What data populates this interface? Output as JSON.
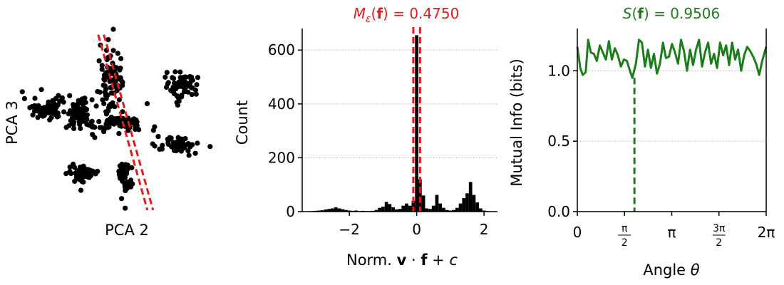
{
  "chart_data": [
    {
      "type": "scatter",
      "xlabel": "PCA 2",
      "ylabel": "PCA 3",
      "axes_visible": false,
      "clusters": [
        {
          "cx": -1.55,
          "cy": 0.35,
          "sx": 0.24,
          "sy": 0.11,
          "n": 80
        },
        {
          "cx": -0.95,
          "cy": 0.22,
          "sx": 0.13,
          "sy": 0.16,
          "n": 70
        },
        {
          "cx": -0.32,
          "cy": 0.9,
          "sx": 0.12,
          "sy": 0.32,
          "n": 90
        },
        {
          "cx": 1.05,
          "cy": 0.78,
          "sx": 0.16,
          "sy": 0.14,
          "n": 70
        },
        {
          "cx": 0.95,
          "cy": -0.38,
          "sx": 0.2,
          "sy": 0.08,
          "n": 60
        },
        {
          "cx": -0.88,
          "cy": -0.92,
          "sx": 0.14,
          "sy": 0.08,
          "n": 60
        },
        {
          "cx": -0.06,
          "cy": -1.02,
          "sx": 0.07,
          "sy": 0.18,
          "n": 55
        },
        {
          "cx": -0.25,
          "cy": 0.05,
          "sx": 0.34,
          "sy": 0.08,
          "n": 70
        }
      ],
      "xlim": [
        -2.2,
        1.9
      ],
      "ylim": [
        -1.7,
        1.9
      ],
      "lines": [
        {
          "x": [
            -0.58,
            0.37
          ],
          "y": [
            1.78,
            -1.63
          ],
          "color": "#e41a1c",
          "style": "dashed"
        },
        {
          "x": [
            -0.47,
            0.48
          ],
          "y": [
            1.78,
            -1.63
          ],
          "color": "#e41a1c",
          "style": "dashed"
        }
      ]
    },
    {
      "type": "bar",
      "title_parts": {
        "pre": "M",
        "sub": "ε",
        "paren_open": "(",
        "bold": "f",
        "post": ") = 0.4750"
      },
      "title_color": "#e41a1c",
      "ylabel": "Count",
      "xlabel_parts": {
        "pre": "Norm. ",
        "b1": "v",
        "mid": " · ",
        "b2": "f",
        "post": " + ",
        "it": "c"
      },
      "xlim": [
        -3.4,
        2.4
      ],
      "ylim": [
        0,
        680
      ],
      "yticks": [
        0,
        200,
        400,
        600
      ],
      "ytick_labels": [
        "0",
        "200",
        "400",
        "600"
      ],
      "xticks": [
        -2,
        0,
        2
      ],
      "xtick_labels": [
        "−2",
        "0",
        "2"
      ],
      "bin_width": 0.1,
      "bins": [
        [
          -3.1,
          2
        ],
        [
          -3.0,
          3
        ],
        [
          -2.9,
          4
        ],
        [
          -2.8,
          5
        ],
        [
          -2.7,
          8
        ],
        [
          -2.6,
          10
        ],
        [
          -2.5,
          12
        ],
        [
          -2.4,
          16
        ],
        [
          -2.3,
          12
        ],
        [
          -2.2,
          9
        ],
        [
          -2.1,
          6
        ],
        [
          -2.0,
          4
        ],
        [
          -1.9,
          3
        ],
        [
          -1.8,
          4
        ],
        [
          -1.7,
          2
        ],
        [
          -1.6,
          3
        ],
        [
          -1.5,
          2
        ],
        [
          -1.4,
          2
        ],
        [
          -1.3,
          3
        ],
        [
          -1.2,
          6
        ],
        [
          -1.1,
          14
        ],
        [
          -1.0,
          18
        ],
        [
          -0.9,
          36
        ],
        [
          -0.8,
          28
        ],
        [
          -0.7,
          16
        ],
        [
          -0.6,
          8
        ],
        [
          -0.5,
          10
        ],
        [
          -0.4,
          22
        ],
        [
          -0.3,
          30
        ],
        [
          -0.2,
          22
        ],
        [
          -0.1,
          40
        ],
        [
          0.0,
          655
        ],
        [
          0.1,
          120
        ],
        [
          0.2,
          60
        ],
        [
          0.3,
          12
        ],
        [
          0.4,
          10
        ],
        [
          0.5,
          22
        ],
        [
          0.6,
          62
        ],
        [
          0.7,
          30
        ],
        [
          0.8,
          14
        ],
        [
          0.9,
          6
        ],
        [
          1.0,
          4
        ],
        [
          1.1,
          6
        ],
        [
          1.2,
          14
        ],
        [
          1.3,
          30
        ],
        [
          1.4,
          50
        ],
        [
          1.5,
          68
        ],
        [
          1.6,
          110
        ],
        [
          1.7,
          62
        ],
        [
          1.8,
          34
        ],
        [
          1.9,
          12
        ],
        [
          2.0,
          4
        ],
        [
          2.1,
          2
        ]
      ],
      "threshold_lines": [
        -0.1,
        0.1
      ],
      "threshold_color": "#e41a1c"
    },
    {
      "type": "line",
      "title_parts": {
        "pre": "S",
        "paren_open": "(",
        "bold": "f",
        "post": ") = 0.9506"
      },
      "title_color": "#1b7e1b",
      "ylabel": "Mutual Info (bits)",
      "xlabel_parts": {
        "pre": "Angle ",
        "it": "θ"
      },
      "xlim": [
        0,
        6.2832
      ],
      "ylim": [
        0,
        1.3
      ],
      "yticks": [
        0.0,
        0.5,
        1.0
      ],
      "ytick_labels": [
        "0.0",
        "0.5",
        "1.0"
      ],
      "xticks": [
        {
          "value": 0,
          "label": "0"
        },
        {
          "value": 1.5708,
          "num": "π",
          "den": "2"
        },
        {
          "value": 3.1416,
          "label": "π"
        },
        {
          "value": 4.7124,
          "num": "3π",
          "den": "2"
        },
        {
          "value": 6.2832,
          "label": "2π"
        }
      ],
      "series": [
        {
          "color": "#1b7e1b",
          "x": [
            0.0,
            0.1,
            0.18,
            0.28,
            0.36,
            0.45,
            0.55,
            0.65,
            0.75,
            0.85,
            0.95,
            1.05,
            1.15,
            1.25,
            1.35,
            1.45,
            1.55,
            1.65,
            1.75,
            1.83,
            1.95,
            2.05,
            2.15,
            2.25,
            2.35,
            2.45,
            2.55,
            2.65,
            2.75,
            2.85,
            2.95,
            3.05,
            3.15,
            3.25,
            3.35,
            3.45,
            3.55,
            3.65,
            3.75,
            3.85,
            3.95,
            4.05,
            4.15,
            4.25,
            4.35,
            4.45,
            4.55,
            4.65,
            4.75,
            4.85,
            4.95,
            5.05,
            5.15,
            5.25,
            5.35,
            5.45,
            5.55,
            5.65,
            5.75,
            5.85,
            5.95,
            6.05,
            6.15,
            6.2832
          ],
          "y": [
            1.17,
            1.02,
            0.97,
            0.99,
            1.22,
            1.13,
            1.12,
            1.07,
            1.18,
            1.13,
            1.08,
            1.21,
            1.08,
            1.16,
            1.11,
            1.03,
            1.08,
            1.07,
            1.0,
            0.95,
            1.05,
            1.22,
            1.2,
            1.03,
            1.15,
            1.02,
            1.12,
            0.98,
            1.05,
            1.2,
            1.09,
            1.1,
            1.19,
            1.13,
            1.05,
            1.22,
            1.14,
            1.0,
            1.15,
            1.04,
            1.15,
            1.22,
            1.03,
            1.13,
            1.2,
            1.05,
            1.12,
            1.02,
            1.2,
            1.11,
            1.18,
            1.04,
            1.2,
            1.08,
            1.15,
            1.0,
            1.11,
            1.17,
            1.14,
            1.1,
            1.05,
            0.97,
            1.07,
            1.17
          ]
        }
      ],
      "marker_angle": 1.9,
      "marker_value": 0.95
    }
  ]
}
